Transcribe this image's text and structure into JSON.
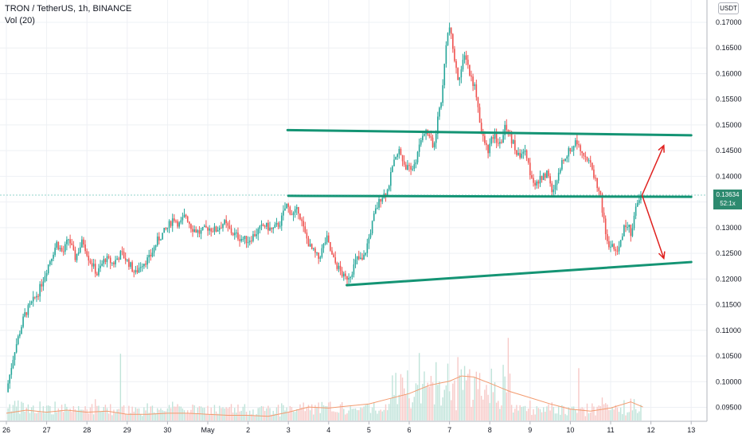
{
  "header": {
    "title": "TRON / TetherUS, 1h, BINANCE",
    "volume_label": "Vol (20)",
    "currency": "USDT"
  },
  "price_badge": {
    "price": "0.13634",
    "countdown": "52:1x"
  },
  "colors": {
    "up": "#26a69a",
    "down": "#ef5350",
    "trendline": "#149474",
    "arrow": "#e0201e",
    "volume_ma": "#f39a6e"
  },
  "chart_data": {
    "type": "candlestick",
    "symbol": "TRON / TetherUS",
    "interval": "1h",
    "exchange": "BINANCE",
    "y_ticks": [
      "0.17000",
      "0.16500",
      "0.16000",
      "0.15500",
      "0.15000",
      "0.14500",
      "0.14000",
      "0.13500",
      "0.13000",
      "0.12500",
      "0.12000",
      "0.11500",
      "0.11000",
      "0.10500",
      "0.10000",
      "0.09500"
    ],
    "ylim": [
      0.0935,
      0.1725
    ],
    "x_ticks": [
      "26",
      "27",
      "28",
      "29",
      "30",
      "May",
      "2",
      "3",
      "4",
      "5",
      "6",
      "7",
      "8",
      "9",
      "10",
      "11",
      "12",
      "13"
    ],
    "last_price": 0.13634,
    "price_path": [
      {
        "t": 0.0,
        "p": 0.098
      },
      {
        "t": 0.2,
        "p": 0.106
      },
      {
        "t": 0.45,
        "p": 0.113
      },
      {
        "t": 0.8,
        "p": 0.1175
      },
      {
        "t": 1.05,
        "p": 0.123
      },
      {
        "t": 1.25,
        "p": 0.127
      },
      {
        "t": 1.4,
        "p": 0.125
      },
      {
        "t": 1.55,
        "p": 0.128
      },
      {
        "t": 1.7,
        "p": 0.124
      },
      {
        "t": 1.9,
        "p": 0.1275
      },
      {
        "t": 2.05,
        "p": 0.124
      },
      {
        "t": 2.25,
        "p": 0.121
      },
      {
        "t": 2.45,
        "p": 0.124
      },
      {
        "t": 2.65,
        "p": 0.123
      },
      {
        "t": 2.85,
        "p": 0.125
      },
      {
        "t": 3.05,
        "p": 0.123
      },
      {
        "t": 3.2,
        "p": 0.121
      },
      {
        "t": 3.35,
        "p": 0.123
      },
      {
        "t": 3.55,
        "p": 0.124
      },
      {
        "t": 3.75,
        "p": 0.1275
      },
      {
        "t": 4.0,
        "p": 0.13
      },
      {
        "t": 4.15,
        "p": 0.132
      },
      {
        "t": 4.3,
        "p": 0.1305
      },
      {
        "t": 4.45,
        "p": 0.1325
      },
      {
        "t": 4.6,
        "p": 0.13
      },
      {
        "t": 4.8,
        "p": 0.129
      },
      {
        "t": 5.0,
        "p": 0.13
      },
      {
        "t": 5.2,
        "p": 0.1295
      },
      {
        "t": 5.4,
        "p": 0.131
      },
      {
        "t": 5.6,
        "p": 0.129
      },
      {
        "t": 5.8,
        "p": 0.128
      },
      {
        "t": 6.0,
        "p": 0.1275
      },
      {
        "t": 6.2,
        "p": 0.129
      },
      {
        "t": 6.4,
        "p": 0.1305
      },
      {
        "t": 6.6,
        "p": 0.1295
      },
      {
        "t": 6.8,
        "p": 0.131
      },
      {
        "t": 6.95,
        "p": 0.1345
      },
      {
        "t": 7.1,
        "p": 0.1325
      },
      {
        "t": 7.25,
        "p": 0.1335
      },
      {
        "t": 7.4,
        "p": 0.129
      },
      {
        "t": 7.55,
        "p": 0.126
      },
      {
        "t": 7.75,
        "p": 0.124
      },
      {
        "t": 7.95,
        "p": 0.128
      },
      {
        "t": 8.1,
        "p": 0.124
      },
      {
        "t": 8.25,
        "p": 0.122
      },
      {
        "t": 8.4,
        "p": 0.12
      },
      {
        "t": 8.55,
        "p": 0.121
      },
      {
        "t": 8.7,
        "p": 0.124
      },
      {
        "t": 8.85,
        "p": 0.1235
      },
      {
        "t": 9.0,
        "p": 0.128
      },
      {
        "t": 9.15,
        "p": 0.133
      },
      {
        "t": 9.3,
        "p": 0.136
      },
      {
        "t": 9.45,
        "p": 0.137
      },
      {
        "t": 9.6,
        "p": 0.142
      },
      {
        "t": 9.75,
        "p": 0.145
      },
      {
        "t": 9.9,
        "p": 0.142
      },
      {
        "t": 10.05,
        "p": 0.141
      },
      {
        "t": 10.2,
        "p": 0.144
      },
      {
        "t": 10.35,
        "p": 0.149
      },
      {
        "t": 10.5,
        "p": 0.148
      },
      {
        "t": 10.6,
        "p": 0.145
      },
      {
        "t": 10.72,
        "p": 0.152
      },
      {
        "t": 10.82,
        "p": 0.156
      },
      {
        "t": 10.92,
        "p": 0.1665
      },
      {
        "t": 11.0,
        "p": 0.169
      },
      {
        "t": 11.1,
        "p": 0.164
      },
      {
        "t": 11.2,
        "p": 0.159
      },
      {
        "t": 11.3,
        "p": 0.161
      },
      {
        "t": 11.4,
        "p": 0.164
      },
      {
        "t": 11.5,
        "p": 0.16
      },
      {
        "t": 11.65,
        "p": 0.157
      },
      {
        "t": 11.8,
        "p": 0.148
      },
      {
        "t": 11.95,
        "p": 0.145
      },
      {
        "t": 12.1,
        "p": 0.148
      },
      {
        "t": 12.25,
        "p": 0.146
      },
      {
        "t": 12.4,
        "p": 0.15
      },
      {
        "t": 12.55,
        "p": 0.147
      },
      {
        "t": 12.7,
        "p": 0.144
      },
      {
        "t": 12.85,
        "p": 0.145
      },
      {
        "t": 13.0,
        "p": 0.141
      },
      {
        "t": 13.15,
        "p": 0.138
      },
      {
        "t": 13.3,
        "p": 0.14
      },
      {
        "t": 13.45,
        "p": 0.141
      },
      {
        "t": 13.55,
        "p": 0.136
      },
      {
        "t": 13.7,
        "p": 0.14
      },
      {
        "t": 13.85,
        "p": 0.144
      },
      {
        "t": 14.0,
        "p": 0.145
      },
      {
        "t": 14.15,
        "p": 0.147
      },
      {
        "t": 14.3,
        "p": 0.145
      },
      {
        "t": 14.45,
        "p": 0.143
      },
      {
        "t": 14.6,
        "p": 0.14
      },
      {
        "t": 14.75,
        "p": 0.136
      },
      {
        "t": 14.85,
        "p": 0.13
      },
      {
        "t": 14.95,
        "p": 0.126
      },
      {
        "t": 15.05,
        "p": 0.127
      },
      {
        "t": 15.15,
        "p": 0.124
      },
      {
        "t": 15.25,
        "p": 0.128
      },
      {
        "t": 15.4,
        "p": 0.131
      },
      {
        "t": 15.5,
        "p": 0.129
      },
      {
        "t": 15.6,
        "p": 0.133
      },
      {
        "t": 15.7,
        "p": 0.135
      },
      {
        "t": 15.78,
        "p": 0.13634
      }
    ],
    "volume_ma": [
      {
        "t": 0.0,
        "v": 0.7
      },
      {
        "t": 0.5,
        "v": 1.0
      },
      {
        "t": 1.0,
        "v": 0.8
      },
      {
        "t": 1.5,
        "v": 1.0
      },
      {
        "t": 2.0,
        "v": 0.8
      },
      {
        "t": 2.5,
        "v": 0.9
      },
      {
        "t": 3.0,
        "v": 0.6
      },
      {
        "t": 3.5,
        "v": 0.6
      },
      {
        "t": 4.0,
        "v": 0.7
      },
      {
        "t": 4.5,
        "v": 0.7
      },
      {
        "t": 5.0,
        "v": 0.6
      },
      {
        "t": 5.5,
        "v": 0.5
      },
      {
        "t": 6.0,
        "v": 0.5
      },
      {
        "t": 6.5,
        "v": 0.4
      },
      {
        "t": 7.0,
        "v": 0.8
      },
      {
        "t": 7.5,
        "v": 1.3
      },
      {
        "t": 8.0,
        "v": 1.2
      },
      {
        "t": 8.5,
        "v": 1.4
      },
      {
        "t": 9.0,
        "v": 1.6
      },
      {
        "t": 9.5,
        "v": 2.1
      },
      {
        "t": 10.0,
        "v": 2.6
      },
      {
        "t": 10.5,
        "v": 3.4
      },
      {
        "t": 11.0,
        "v": 3.8
      },
      {
        "t": 11.3,
        "v": 4.3
      },
      {
        "t": 11.6,
        "v": 4.2
      },
      {
        "t": 12.0,
        "v": 3.6
      },
      {
        "t": 12.5,
        "v": 2.8
      },
      {
        "t": 13.0,
        "v": 2.2
      },
      {
        "t": 13.5,
        "v": 1.6
      },
      {
        "t": 14.0,
        "v": 1.1
      },
      {
        "t": 14.5,
        "v": 0.9
      },
      {
        "t": 15.0,
        "v": 1.2
      },
      {
        "t": 15.5,
        "v": 1.8
      },
      {
        "t": 15.8,
        "v": 1.3
      }
    ],
    "trendlines": [
      {
        "name": "upper-resistance",
        "t": [
          6.98,
          17.0
        ],
        "p": [
          0.149,
          0.148
        ]
      },
      {
        "name": "middle-level",
        "t": [
          7.0,
          17.0
        ],
        "p": [
          0.1362,
          0.136
        ]
      },
      {
        "name": "lower-support",
        "t": [
          8.45,
          17.0
        ],
        "p": [
          0.1188,
          0.1233
        ]
      }
    ],
    "arrows": [
      {
        "name": "bullish-scenario",
        "from": [
          15.78,
          0.13634
        ],
        "to": [
          16.32,
          0.146
        ]
      },
      {
        "name": "bearish-scenario",
        "from": [
          15.78,
          0.13634
        ],
        "to": [
          16.32,
          0.124
        ]
      }
    ]
  }
}
